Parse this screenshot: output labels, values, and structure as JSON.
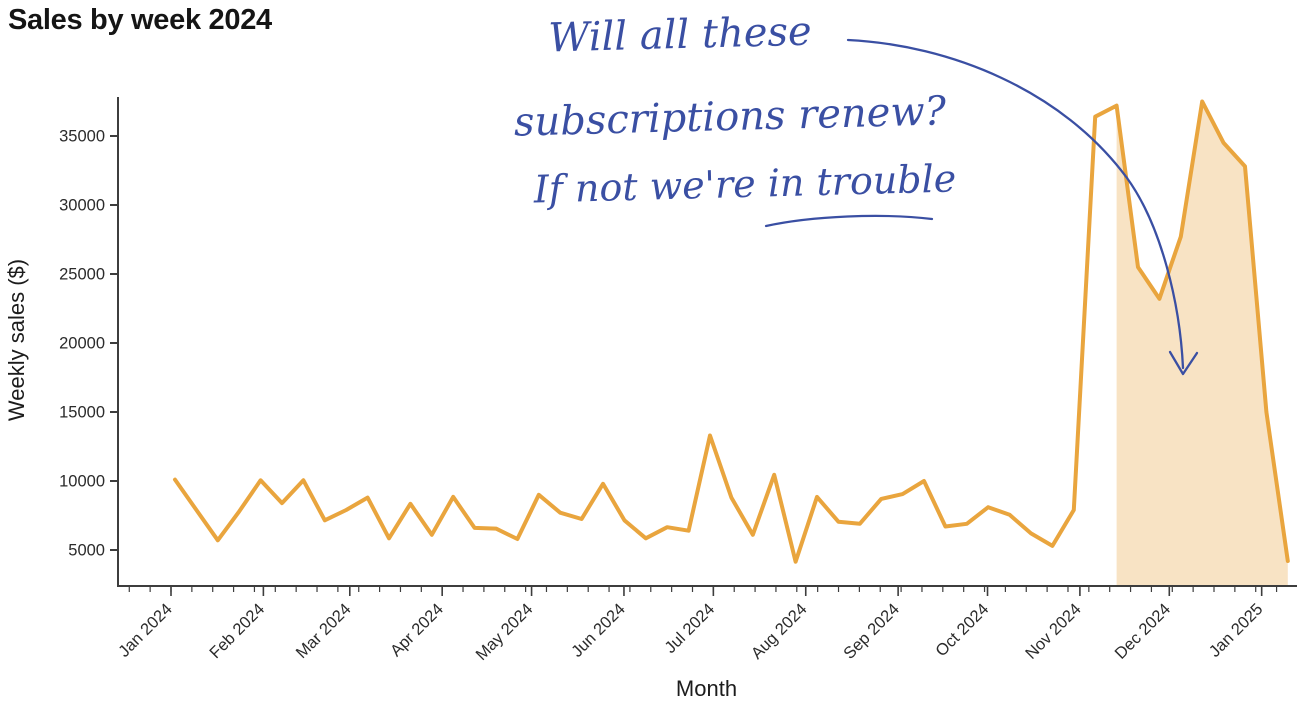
{
  "header": {
    "title": "Sales by week 2024"
  },
  "annotation": {
    "line1": "Will all these",
    "line2": "subscriptions renew?",
    "line3": "If not we're in trouble",
    "color": "#3A4FA3",
    "points_to": "shaded subscription-renewal region (mid-Nov 2024 onward)"
  },
  "chart_data": {
    "type": "line",
    "title": "Sales by week 2024",
    "xlabel": "Month",
    "ylabel": "Weekly sales ($)",
    "x_tick_labels": [
      "Jan 2024",
      "Feb 2024",
      "Mar 2024",
      "Apr 2024",
      "May 2024",
      "Jun 2024",
      "Jul 2024",
      "Aug 2024",
      "Sep 2024",
      "Oct 2024",
      "Nov 2024",
      "Dec 2024",
      "Jan 2025"
    ],
    "x_tick_day_offsets": [
      0,
      31,
      60,
      91,
      121,
      152,
      182,
      213,
      244,
      274,
      305,
      335,
      366
    ],
    "y_ticks": [
      5000,
      10000,
      15000,
      20000,
      25000,
      30000,
      35000
    ],
    "ylim": [
      2400,
      38300
    ],
    "grid": false,
    "legend": "none",
    "series": [
      {
        "name": "Weekly sales",
        "x_unit": "week_index_from_jan_2024",
        "values": [
          10100,
          7900,
          5700,
          7800,
          10050,
          8400,
          10050,
          7150,
          7900,
          8800,
          5850,
          8350,
          6100,
          8850,
          6600,
          6550,
          5800,
          9000,
          7700,
          7250,
          9800,
          7150,
          5850,
          6650,
          6400,
          13300,
          8800,
          6100,
          10450,
          4150,
          8850,
          7050,
          6900,
          8700,
          9050,
          10000,
          6700,
          6900,
          8100,
          7550,
          6200,
          5300,
          7900,
          36400,
          37200,
          25500,
          23200,
          27700,
          37500,
          34500,
          32800,
          15000,
          4200
        ]
      }
    ],
    "highlight_region": {
      "description": "Area under the curve shaded from mid-November 2024 through the final week",
      "start_week_index": 44,
      "end_week_index": 52
    },
    "line_color": "#E9A53E",
    "fill_color": "rgba(233,163,60,0.30)",
    "axis_color": "#3d3d3d",
    "tick_label_color": "#2b2b2b"
  }
}
